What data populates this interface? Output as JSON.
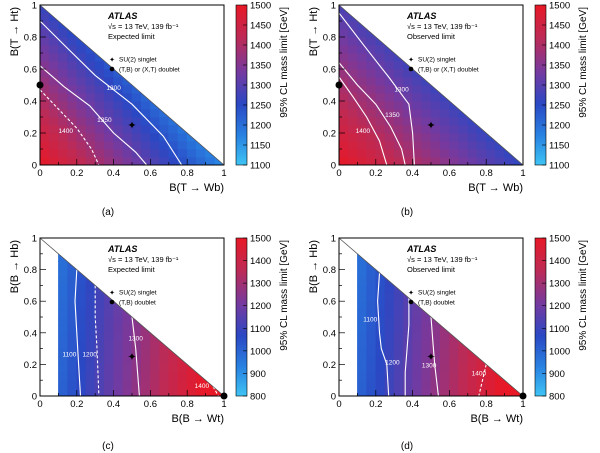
{
  "chart_data": [
    {
      "id": "a",
      "type": "heatmap",
      "caption": "(a)",
      "experiment": "ATLAS",
      "energy_label": "√s = 13 TeV, 139 fb⁻¹",
      "limit_label": "Expected limit",
      "xlabel": "B(T → Wb)",
      "ylabel": "B(T → Ht)",
      "zlabel": "95% CL mass limit [GeV]",
      "xlim": [
        0,
        1
      ],
      "ylim": [
        0,
        1
      ],
      "zlim": [
        1100,
        1500
      ],
      "xticks": [
        "0",
        "0.2",
        "0.4",
        "0.6",
        "0.8",
        "1"
      ],
      "yticks": [
        "0",
        "0.2",
        "0.4",
        "0.6",
        "0.8",
        "1"
      ],
      "zticks": [
        "1100",
        "1150",
        "1200",
        "1250",
        "1300",
        "1350",
        "1400",
        "1450",
        "1500"
      ],
      "corner_values": {
        "x0y0": 1500,
        "x1y0": 1170,
        "x0y1": 1270
      },
      "legend": [
        {
          "marker": "star",
          "label": "SU(2) singlet"
        },
        {
          "marker": "dot",
          "label": "(T,B) or (X,T) doublet"
        }
      ],
      "markers": [
        {
          "marker": "star",
          "x": 0.5,
          "y": 0.25
        },
        {
          "marker": "dot",
          "x": 0.0,
          "y": 0.5
        }
      ],
      "contours": [
        {
          "label": "1300",
          "style": "solid",
          "points": [
            [
              0.0,
              0.9
            ],
            [
              0.14,
              0.74
            ],
            [
              0.3,
              0.56
            ],
            [
              0.5,
              0.38
            ],
            [
              0.67,
              0.18
            ],
            [
              0.77,
              0.0
            ]
          ]
        },
        {
          "label": "1350",
          "style": "solid",
          "points": [
            [
              0.0,
              0.62
            ],
            [
              0.13,
              0.49
            ],
            [
              0.27,
              0.37
            ],
            [
              0.4,
              0.2
            ],
            [
              0.52,
              0.08
            ],
            [
              0.58,
              0.0
            ]
          ]
        },
        {
          "label": "1400",
          "style": "dashed",
          "points": [
            [
              0.0,
              0.47
            ],
            [
              0.1,
              0.35
            ],
            [
              0.2,
              0.23
            ],
            [
              0.28,
              0.1
            ],
            [
              0.32,
              0.0
            ]
          ]
        }
      ],
      "contour_labels": [
        {
          "text": "1300",
          "x": 0.4,
          "y": 0.47
        },
        {
          "text": "1350",
          "x": 0.35,
          "y": 0.27
        },
        {
          "text": "1400",
          "x": 0.14,
          "y": 0.2
        }
      ]
    },
    {
      "id": "b",
      "type": "heatmap",
      "caption": "(b)",
      "experiment": "ATLAS",
      "energy_label": "√s = 13 TeV, 139 fb⁻¹",
      "limit_label": "Observed limit",
      "xlabel": "B(T → Wb)",
      "ylabel": "B(T → Ht)",
      "zlabel": "95% CL mass limit [GeV]",
      "xlim": [
        0,
        1
      ],
      "ylim": [
        0,
        1
      ],
      "zlim": [
        1100,
        1500
      ],
      "xticks": [
        "0",
        "0.2",
        "0.4",
        "0.6",
        "0.8",
        "1"
      ],
      "yticks": [
        "0",
        "0.2",
        "0.4",
        "0.6",
        "0.8",
        "1"
      ],
      "zticks": [
        "1100",
        "1150",
        "1200",
        "1250",
        "1300",
        "1350",
        "1400",
        "1450",
        "1500"
      ],
      "corner_values": {
        "x0y0": 1500,
        "x1y0": 1260,
        "x0y1": 1290
      },
      "legend": [
        {
          "marker": "star",
          "label": "SU(2) singlet"
        },
        {
          "marker": "dot",
          "label": "(T,B) or (X,T) doublet"
        }
      ],
      "markers": [
        {
          "marker": "star",
          "x": 0.5,
          "y": 0.25
        },
        {
          "marker": "dot",
          "x": 0.0,
          "y": 0.5
        }
      ],
      "contours": [
        {
          "label": "1300",
          "style": "solid",
          "points": [
            [
              0.0,
              0.95
            ],
            [
              0.14,
              0.74
            ],
            [
              0.27,
              0.55
            ],
            [
              0.38,
              0.38
            ],
            [
              0.4,
              0.2
            ],
            [
              0.41,
              0.0
            ]
          ]
        },
        {
          "label": "1350",
          "style": "solid",
          "points": [
            [
              0.0,
              0.64
            ],
            [
              0.1,
              0.5
            ],
            [
              0.2,
              0.38
            ],
            [
              0.28,
              0.24
            ],
            [
              0.34,
              0.1
            ],
            [
              0.36,
              0.0
            ]
          ]
        },
        {
          "label": "1400",
          "style": "solid",
          "points": [
            [
              0.0,
              0.55
            ],
            [
              0.08,
              0.42
            ],
            [
              0.15,
              0.3
            ],
            [
              0.22,
              0.15
            ],
            [
              0.26,
              0.0
            ]
          ]
        }
      ],
      "contour_labels": [
        {
          "text": "1300",
          "x": 0.34,
          "y": 0.46
        },
        {
          "text": "1350",
          "x": 0.29,
          "y": 0.3
        },
        {
          "text": "1400",
          "x": 0.13,
          "y": 0.2
        }
      ]
    },
    {
      "id": "c",
      "type": "heatmap",
      "caption": "(c)",
      "experiment": "ATLAS",
      "energy_label": "√s = 13 TeV, 139 fb⁻¹",
      "limit_label": "Expected limit",
      "xlabel": "B(B → Wt)",
      "ylabel": "B(B → Hb)",
      "zlabel": "95% CL mass limit [GeV]",
      "xlim": [
        0,
        1
      ],
      "ylim": [
        0,
        1
      ],
      "zlim": [
        800,
        1500
      ],
      "xticks": [
        "0",
        "0.2",
        "0.4",
        "0.6",
        "0.8",
        "1"
      ],
      "yticks": [
        "0",
        "0.2",
        "0.4",
        "0.6",
        "0.8",
        "1"
      ],
      "zticks": [
        "800",
        "900",
        "1000",
        "1100",
        "1200",
        "1300",
        "1400",
        "1500"
      ],
      "x_coverage_min": 0.1,
      "legend": [
        {
          "marker": "star",
          "label": "SU(2) singlet"
        },
        {
          "marker": "dot",
          "label": "(T,B) doublet"
        }
      ],
      "markers": [
        {
          "marker": "star",
          "x": 0.5,
          "y": 0.25
        },
        {
          "marker": "dot",
          "x": 1.0,
          "y": 0.0
        }
      ],
      "contours": [
        {
          "label": "1100",
          "style": "solid",
          "points": [
            [
              0.2,
              0.8
            ],
            [
              0.19,
              0.6
            ],
            [
              0.2,
              0.4
            ],
            [
              0.21,
              0.2
            ],
            [
              0.22,
              0.0
            ]
          ]
        },
        {
          "label": "1200",
          "style": "dashed",
          "points": [
            [
              0.3,
              0.7
            ],
            [
              0.3,
              0.5
            ],
            [
              0.31,
              0.3
            ],
            [
              0.32,
              0.0
            ]
          ]
        },
        {
          "label": "1300",
          "style": "solid",
          "points": [
            [
              0.5,
              0.5
            ],
            [
              0.52,
              0.3
            ],
            [
              0.54,
              0.0
            ]
          ]
        },
        {
          "label": "1400",
          "style": "dashed",
          "points": [
            [
              0.94,
              0.06
            ],
            [
              0.97,
              0.0
            ]
          ]
        }
      ],
      "contour_labels": [
        {
          "text": "1100",
          "x": 0.16,
          "y": 0.25
        },
        {
          "text": "1200",
          "x": 0.27,
          "y": 0.25
        },
        {
          "text": "1300",
          "x": 0.52,
          "y": 0.35
        },
        {
          "text": "1400",
          "x": 0.88,
          "y": 0.05
        }
      ]
    },
    {
      "id": "d",
      "type": "heatmap",
      "caption": "(d)",
      "experiment": "ATLAS",
      "energy_label": "√s = 13 TeV, 139 fb⁻¹",
      "limit_label": "Observed limit",
      "xlabel": "B(B → Wt)",
      "ylabel": "B(B → Hb)",
      "zlabel": "95% CL mass limit [GeV]",
      "xlim": [
        0,
        1
      ],
      "ylim": [
        0,
        1
      ],
      "zlim": [
        800,
        1500
      ],
      "xticks": [
        "0",
        "0.2",
        "0.4",
        "0.6",
        "0.8",
        "1"
      ],
      "yticks": [
        "0",
        "0.2",
        "0.4",
        "0.6",
        "0.8",
        "1"
      ],
      "zticks": [
        "800",
        "900",
        "1000",
        "1100",
        "1200",
        "1300",
        "1400",
        "1500"
      ],
      "x_coverage_min": 0.1,
      "legend": [
        {
          "marker": "star",
          "label": "SU(2) singlet"
        },
        {
          "marker": "dot",
          "label": "(T,B) doublet"
        }
      ],
      "markers": [
        {
          "marker": "star",
          "x": 0.5,
          "y": 0.25
        },
        {
          "marker": "dot",
          "x": 1.0,
          "y": 0.0
        }
      ],
      "contours": [
        {
          "label": "1100",
          "style": "solid",
          "points": [
            [
              0.22,
              0.78
            ],
            [
              0.21,
              0.6
            ],
            [
              0.22,
              0.4
            ],
            [
              0.23,
              0.3
            ],
            [
              0.26,
              0.2
            ],
            [
              0.27,
              0.0
            ]
          ]
        },
        {
          "label": "1200",
          "style": "solid",
          "points": [
            [
              0.38,
              0.62
            ],
            [
              0.38,
              0.45
            ],
            [
              0.37,
              0.3
            ],
            [
              0.36,
              0.15
            ],
            [
              0.36,
              0.0
            ]
          ]
        },
        {
          "label": "1300",
          "style": "solid",
          "points": [
            [
              0.5,
              0.5
            ],
            [
              0.51,
              0.35
            ],
            [
              0.52,
              0.2
            ],
            [
              0.54,
              0.0
            ]
          ]
        },
        {
          "label": "1400",
          "style": "dashed",
          "points": [
            [
              0.8,
              0.2
            ],
            [
              0.78,
              0.1
            ],
            [
              0.76,
              0.0
            ]
          ]
        }
      ],
      "contour_labels": [
        {
          "text": "1100",
          "x": 0.17,
          "y": 0.47
        },
        {
          "text": "1200",
          "x": 0.29,
          "y": 0.2
        },
        {
          "text": "1300",
          "x": 0.49,
          "y": 0.18
        },
        {
          "text": "1400",
          "x": 0.76,
          "y": 0.13
        }
      ]
    }
  ]
}
